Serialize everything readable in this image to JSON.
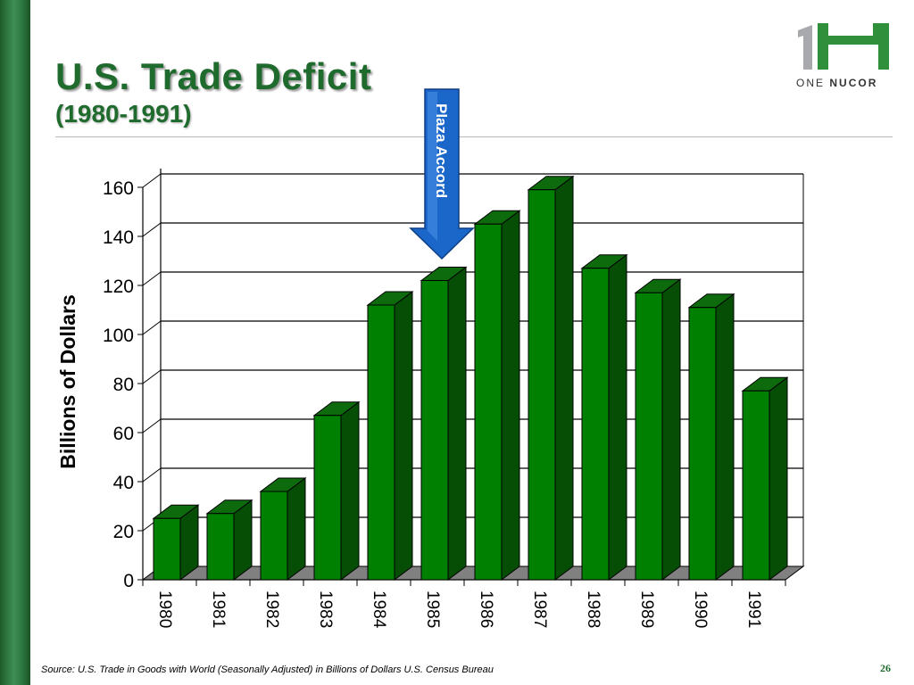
{
  "slide": {
    "title": "U.S. Trade Deficit",
    "subtitle": "(1980-1991)",
    "source": "Source: U.S. Trade in Goods with World (Seasonally Adjusted) in Billions of Dollars  U.S. Census Bureau",
    "page_number": "26",
    "logo": {
      "mark": "1N",
      "caption_light": "ONE",
      "caption_bold": "NUCOR",
      "colors": {
        "one": "#a7a9ac",
        "n": "#2f8f3a"
      }
    }
  },
  "chart_data": {
    "type": "bar",
    "title": "",
    "xlabel": "",
    "ylabel": "Billions of Dollars",
    "ylim": [
      0,
      160
    ],
    "yticks": [
      0,
      20,
      40,
      60,
      80,
      100,
      120,
      140,
      160
    ],
    "categories": [
      "1980",
      "1981",
      "1982",
      "1983",
      "1984",
      "1985",
      "1986",
      "1987",
      "1988",
      "1989",
      "1990",
      "1991"
    ],
    "values": [
      25,
      27,
      36,
      67,
      112,
      122,
      145,
      159,
      127,
      117,
      111,
      77
    ],
    "grid": true,
    "colors": {
      "bar_front": "#008000",
      "bar_top": "#0d6b0d",
      "bar_side": "#064d06",
      "floor": "#808080"
    },
    "annotation": {
      "text": "Plaza Accord",
      "category": "1985",
      "color": "#1a66c9"
    }
  }
}
